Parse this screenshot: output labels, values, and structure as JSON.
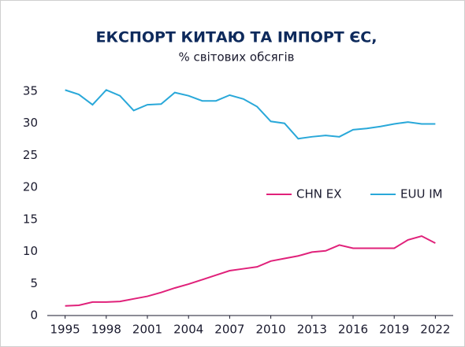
{
  "chart_data": {
    "type": "line",
    "title": "ЕКСПОРТ КИТАЮ ТА ІМПОРТ ЄС,",
    "subtitle": "% світових обсягів",
    "x": [
      1995,
      1996,
      1997,
      1998,
      1999,
      2000,
      2001,
      2002,
      2003,
      2004,
      2005,
      2006,
      2007,
      2008,
      2009,
      2010,
      2011,
      2012,
      2013,
      2014,
      2015,
      2016,
      2017,
      2018,
      2019,
      2020,
      2021,
      2022
    ],
    "series": [
      {
        "name": "CHN EX",
        "color": "#e0217a",
        "values": [
          1.5,
          1.6,
          2.1,
          2.1,
          2.2,
          2.6,
          3.0,
          3.6,
          4.3,
          4.9,
          5.6,
          6.3,
          7.0,
          7.3,
          7.6,
          8.5,
          8.9,
          9.3,
          9.9,
          10.1,
          11.0,
          10.5,
          10.5,
          10.5,
          10.5,
          11.8,
          12.4,
          11.3
        ]
      },
      {
        "name": "EUU IM",
        "color": "#29a8d9",
        "values": [
          35.2,
          34.5,
          32.9,
          35.2,
          34.3,
          32.0,
          32.9,
          33.0,
          34.8,
          34.3,
          33.5,
          33.5,
          34.4,
          33.8,
          32.6,
          30.3,
          30.0,
          27.6,
          27.9,
          28.1,
          27.9,
          29.0,
          29.2,
          29.5,
          29.9,
          30.2,
          29.9,
          29.9
        ]
      }
    ],
    "xlim": [
      1993.7,
      2023.3
    ],
    "xticks": [
      1995,
      1998,
      2001,
      2004,
      2007,
      2010,
      2013,
      2016,
      2019,
      2022
    ],
    "ylim": [
      0,
      35
    ],
    "yticks": [
      0,
      5,
      10,
      15,
      20,
      25,
      30,
      35
    ],
    "grid": false,
    "legend": "center-right"
  }
}
